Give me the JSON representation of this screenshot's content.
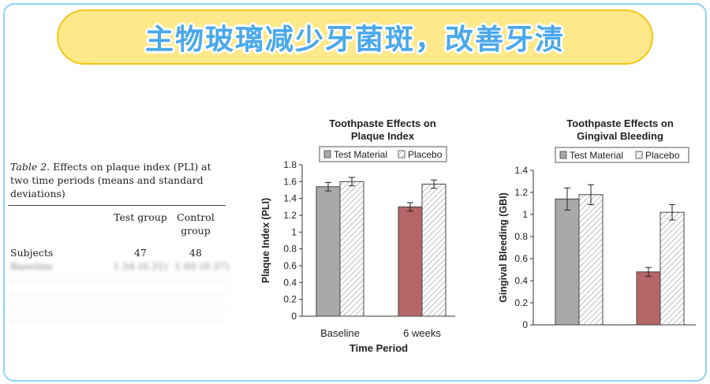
{
  "banner": {
    "title": "主物玻璃减少牙菌斑，改善牙渍"
  },
  "table": {
    "caption_label": "Table 2.",
    "caption_text": " Effects on plaque index (PLI) at two time periods (means and standard deviations)",
    "col1": "Test group",
    "col2": "Control group",
    "rows": [
      {
        "label": "Subjects",
        "v1": "47",
        "v2": "48"
      },
      {
        "label": "Baseline",
        "v1": "1.54 (0.31)",
        "v2": "1.60 (0.37)"
      }
    ]
  },
  "colors": {
    "test_baseline": "#a9a9a9",
    "test_6weeks": "#b56566",
    "placebo": "#ffffff",
    "banner_bg": "#fde98a",
    "banner_text": "#4aa8ea",
    "card_border": "#8fd3f4"
  },
  "chart_data": [
    {
      "type": "bar",
      "title": "Toothpaste Effects on Plaque Index",
      "ylabel": "Plaque Index (PLI)",
      "xlabel": "Time Period",
      "categories": [
        "Baseline",
        "6 weeks"
      ],
      "ylim": [
        0,
        1.8
      ],
      "yticks": [
        0,
        0.2,
        0.4,
        0.6,
        0.8,
        1,
        1.2,
        1.4,
        1.6,
        1.8
      ],
      "legend": "top",
      "series": [
        {
          "name": "Test Material",
          "values": [
            1.54,
            1.3
          ],
          "errors": [
            0.05,
            0.05
          ]
        },
        {
          "name": "Placebo",
          "values": [
            1.6,
            1.57
          ],
          "errors": [
            0.05,
            0.05
          ]
        }
      ]
    },
    {
      "type": "bar",
      "title": "Toothpaste Effects on Gingival Bleeding",
      "ylabel": "Gingival Bleeding (GBI)",
      "xlabel": "",
      "categories": [
        "",
        ""
      ],
      "ylim": [
        0,
        1.4
      ],
      "yticks": [
        0,
        0.2,
        0.4,
        0.6,
        0.8,
        1,
        1.2,
        1.4
      ],
      "legend": "top",
      "series": [
        {
          "name": "Test Material",
          "values": [
            1.14,
            0.48
          ],
          "errors": [
            0.1,
            0.04
          ]
        },
        {
          "name": "Placebo",
          "values": [
            1.18,
            1.02
          ],
          "errors": [
            0.09,
            0.07
          ]
        }
      ]
    }
  ]
}
